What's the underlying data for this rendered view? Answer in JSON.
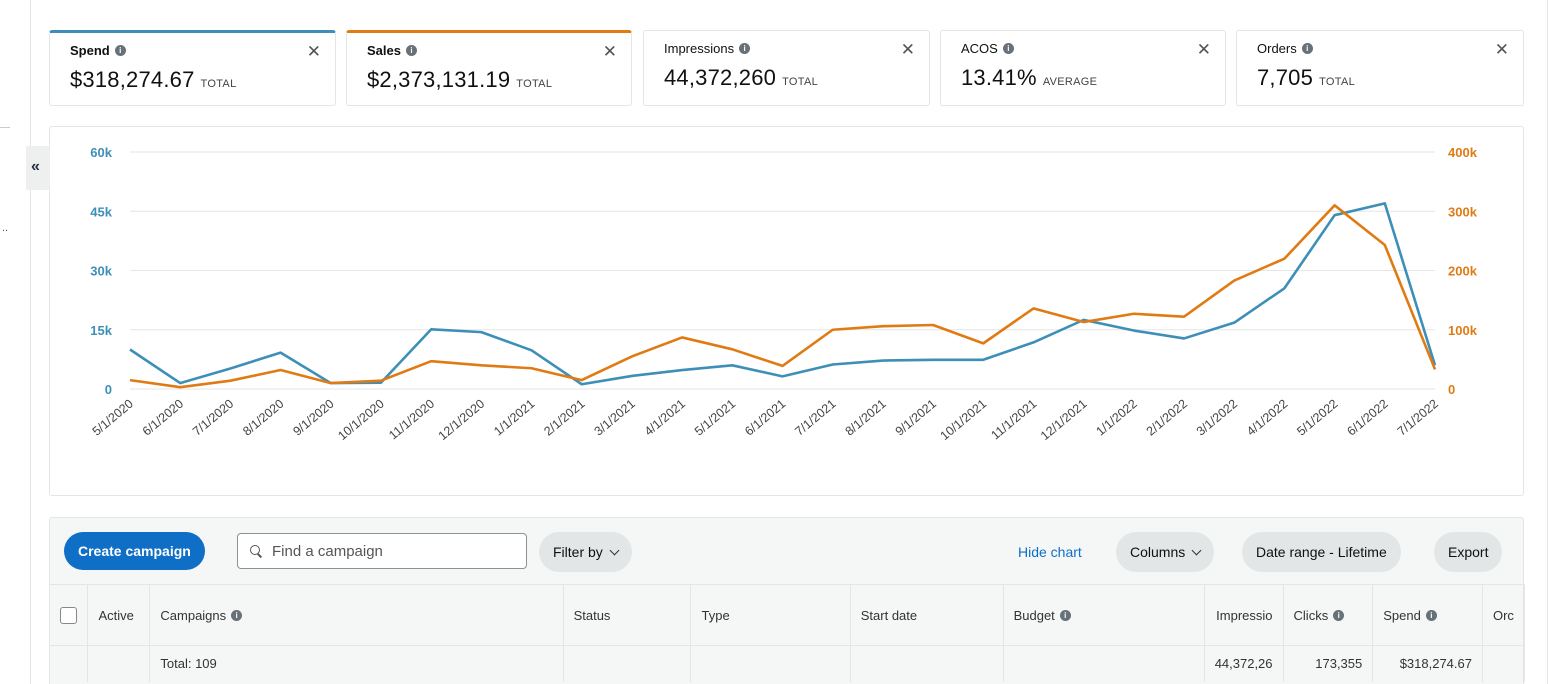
{
  "sidebar": {
    "collapse_glyph": "«",
    "overflow_glyph": ".."
  },
  "cards": [
    {
      "label": "Spend",
      "value": "$318,274.67",
      "sub": "TOTAL",
      "selected": true
    },
    {
      "label": "Sales",
      "value": "$2,373,131.19",
      "sub": "TOTAL",
      "selected": true
    },
    {
      "label": "Impressions",
      "value": "44,372,260",
      "sub": "TOTAL",
      "selected": false
    },
    {
      "label": "ACOS",
      "value": "13.41%",
      "sub": "AVERAGE",
      "selected": false
    },
    {
      "label": "Orders",
      "value": "7,705",
      "sub": "TOTAL",
      "selected": false
    }
  ],
  "icons": {
    "info": "info-icon",
    "close": "close-icon",
    "search": "search-icon",
    "chevron": "chevron-down-icon"
  },
  "colors": {
    "spend": "#3d8fb8",
    "sales": "#e07b14",
    "primary": "#0f6fc6"
  },
  "chart_data": {
    "type": "line",
    "x": [
      "5/1/2020",
      "6/1/2020",
      "7/1/2020",
      "8/1/2020",
      "9/1/2020",
      "10/1/2020",
      "11/1/2020",
      "12/1/2020",
      "1/1/2021",
      "2/1/2021",
      "3/1/2021",
      "4/1/2021",
      "5/1/2021",
      "6/1/2021",
      "7/1/2021",
      "8/1/2021",
      "9/1/2021",
      "10/1/2021",
      "11/1/2021",
      "12/1/2021",
      "1/1/2022",
      "2/1/2022",
      "3/1/2022",
      "4/1/2022",
      "5/1/2022",
      "6/1/2022",
      "7/1/2022"
    ],
    "left_axis": {
      "ticks": [
        "0",
        "15k",
        "30k",
        "45k",
        "60k"
      ],
      "range": [
        0,
        60000
      ]
    },
    "right_axis": {
      "ticks": [
        "0",
        "100k",
        "200k",
        "300k",
        "400k"
      ],
      "range": [
        0,
        400000
      ]
    },
    "grid": true,
    "series": [
      {
        "name": "Spend",
        "axis": "left",
        "values": [
          10000,
          1500,
          5200,
          9200,
          1500,
          1600,
          15100,
          14400,
          9800,
          1200,
          3300,
          4800,
          6000,
          3200,
          6200,
          7200,
          7400,
          7400,
          11800,
          17500,
          14800,
          12800,
          16800,
          25500,
          44000,
          47000,
          6000
        ]
      },
      {
        "name": "Sales",
        "axis": "right",
        "values": [
          15000,
          3000,
          14000,
          32000,
          10000,
          14000,
          47000,
          40000,
          35000,
          15000,
          55000,
          87000,
          67000,
          39000,
          100000,
          106000,
          108000,
          77000,
          136000,
          113000,
          127000,
          122000,
          183000,
          220000,
          310000,
          243000,
          33000
        ]
      }
    ]
  },
  "toolbar": {
    "create_label": "Create campaign",
    "search_placeholder": "Find a campaign",
    "filter_label": "Filter by",
    "hide_chart_label": "Hide chart",
    "columns_label": "Columns",
    "date_range_label": "Date range - Lifetime",
    "export_label": "Export"
  },
  "table": {
    "headers": [
      "Active",
      "Campaigns",
      "Status",
      "Type",
      "Start date",
      "Budget",
      "Impressio",
      "Clicks",
      "Spend",
      "Orc"
    ],
    "total_row": {
      "label": "Total: 109",
      "impressions": "44,372,26",
      "clicks": "173,355",
      "spend": "$318,274.67"
    }
  }
}
